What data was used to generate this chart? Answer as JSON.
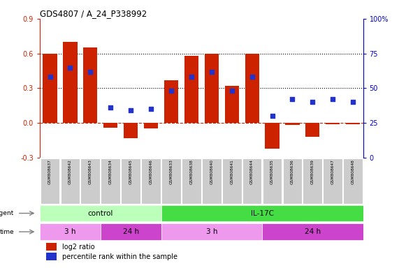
{
  "title": "GDS4807 / A_24_P338992",
  "samples": [
    "GSM808637",
    "GSM808642",
    "GSM808643",
    "GSM808634",
    "GSM808645",
    "GSM808646",
    "GSM808633",
    "GSM808638",
    "GSM808640",
    "GSM808641",
    "GSM808644",
    "GSM808635",
    "GSM808636",
    "GSM808639",
    "GSM808647",
    "GSM808648"
  ],
  "log2_ratio": [
    0.6,
    0.7,
    0.65,
    -0.04,
    -0.13,
    -0.05,
    0.37,
    0.58,
    0.6,
    0.32,
    0.6,
    -0.22,
    -0.02,
    -0.12,
    -0.01,
    -0.01
  ],
  "percentile": [
    58,
    65,
    62,
    36,
    34,
    35,
    48,
    58,
    62,
    48,
    58,
    30,
    42,
    40,
    42,
    40
  ],
  "ylim_left": [
    -0.3,
    0.9
  ],
  "ylim_right": [
    0,
    100
  ],
  "yticks_left": [
    -0.3,
    0.0,
    0.3,
    0.6,
    0.9
  ],
  "yticks_right": [
    0,
    25,
    50,
    75,
    100
  ],
  "hlines": [
    0.6,
    0.3
  ],
  "bar_color": "#cc2200",
  "dot_color": "#2233cc",
  "dot_size": 18,
  "agent_groups": [
    {
      "label": "control",
      "start": 0,
      "end": 6,
      "color": "#bbffbb"
    },
    {
      "label": "IL-17C",
      "start": 6,
      "end": 16,
      "color": "#44dd44"
    }
  ],
  "time_groups": [
    {
      "label": "3 h",
      "start": 0,
      "end": 3,
      "color": "#ee99ee"
    },
    {
      "label": "24 h",
      "start": 3,
      "end": 6,
      "color": "#cc44cc"
    },
    {
      "label": "3 h",
      "start": 6,
      "end": 11,
      "color": "#ee99ee"
    },
    {
      "label": "24 h",
      "start": 11,
      "end": 16,
      "color": "#cc44cc"
    }
  ],
  "legend_bar_label": "log2 ratio",
  "legend_dot_label": "percentile rank within the sample",
  "background_color": "#ffffff",
  "tick_bg": "#cccccc",
  "zero_line_color": "#cc2200",
  "right_axis_color": "#0000cc"
}
